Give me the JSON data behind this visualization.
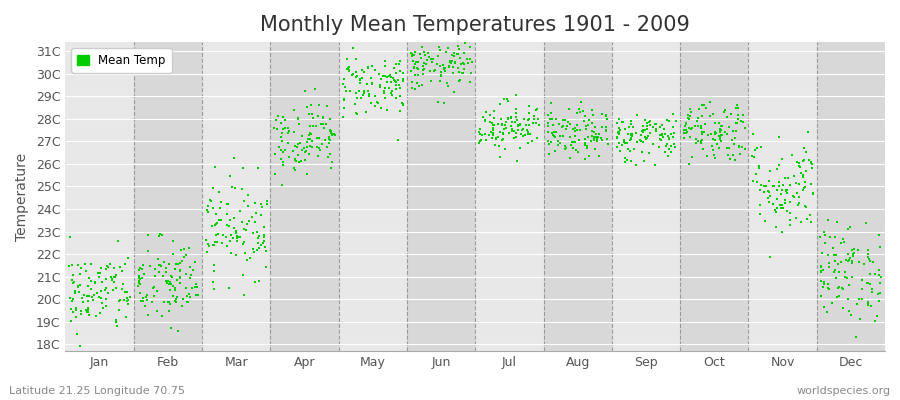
{
  "title": "Monthly Mean Temperatures 1901 - 2009",
  "ylabel": "Temperature",
  "xlabel_labels": [
    "Jan",
    "Feb",
    "Mar",
    "Apr",
    "May",
    "Jun",
    "Jul",
    "Aug",
    "Sep",
    "Oct",
    "Nov",
    "Dec"
  ],
  "ytick_labels": [
    "18C",
    "19C",
    "20C",
    "21C",
    "22C",
    "23C",
    "24C",
    "25C",
    "26C",
    "27C",
    "28C",
    "29C",
    "30C",
    "31C"
  ],
  "ytick_values": [
    18,
    19,
    20,
    21,
    22,
    23,
    24,
    25,
    26,
    27,
    28,
    29,
    30,
    31
  ],
  "ylim": [
    17.7,
    31.4
  ],
  "xlim": [
    0,
    12
  ],
  "dot_color": "#00cc00",
  "dot_size": 3.5,
  "background_color": "#ffffff",
  "plot_bg_odd": "#e8e8e8",
  "plot_bg_even": "#d8d8d8",
  "grid_color": "#ffffff",
  "dashed_line_color": "#888888",
  "title_fontsize": 15,
  "axis_label_fontsize": 10,
  "tick_fontsize": 9,
  "legend_label": "Mean Temp",
  "subtitle": "Latitude 21.25 Longitude 70.75",
  "watermark": "worldspecies.org",
  "n_years": 109,
  "monthly_means": [
    20.3,
    20.7,
    23.2,
    27.2,
    29.5,
    30.3,
    27.7,
    27.3,
    27.2,
    27.5,
    25.0,
    21.2
  ],
  "monthly_stds": [
    0.9,
    1.0,
    1.1,
    0.8,
    0.7,
    0.55,
    0.55,
    0.55,
    0.55,
    0.7,
    1.1,
    1.1
  ]
}
